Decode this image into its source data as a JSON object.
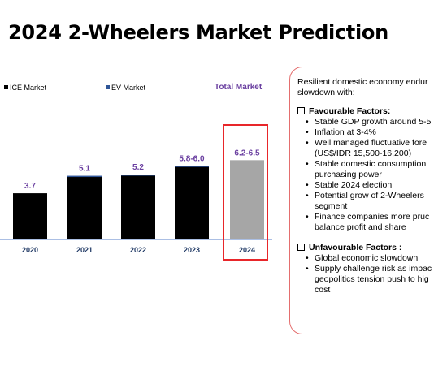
{
  "title": "2024 2-Wheelers Market Prediction",
  "chart_data": {
    "type": "bar",
    "categories": [
      "2020",
      "2021",
      "2022",
      "2023",
      "2024"
    ],
    "series": [
      {
        "name": "ICE Market",
        "values": [
          3.7,
          5.05,
          5.15,
          5.85,
          null
        ]
      },
      {
        "name": "EV Market",
        "values": [
          0,
          0.05,
          0.05,
          0.05,
          null
        ]
      },
      {
        "name": "Total Market",
        "values": [
          null,
          null,
          null,
          null,
          6.35
        ]
      }
    ],
    "data_labels": [
      "3.7",
      "5.1",
      "5.2",
      "5.8-6.0",
      "6.2-6.5"
    ],
    "highlight_category": "2024",
    "colors": {
      "ice": "#000000",
      "ev": "#2f5597",
      "total": "#a6a6a6",
      "label": "#6a3fa0",
      "highlight": "#e8262a"
    },
    "ylim": [
      0,
      8
    ],
    "legend": [
      "ICE Market",
      "EV Market",
      "Total Market"
    ],
    "grid": false
  },
  "panel": {
    "intro_line1": "Resilient domestic economy endur",
    "intro_line2": "slowdown with:",
    "favourable_title": "Favourable Factors:",
    "favourable": [
      [
        "Stable GDP growth around 5-5"
      ],
      [
        "Inflation at 3-4%"
      ],
      [
        "Well managed fluctuative fore",
        "(US$/IDR 15,500-16,200)"
      ],
      [
        "Stable domestic consumption",
        "purchasing power"
      ],
      [
        "Stable 2024 election"
      ],
      [
        "Potential grow of 2-Wheelers",
        "segment"
      ],
      [
        "Finance companies more pruc",
        "balance profit and share"
      ]
    ],
    "unfavourable_title": "Unfavourable Factors :",
    "unfavourable": [
      [
        "Global economic slowdown"
      ],
      [
        "Supply challenge risk as impac",
        "geopolitics tension push to hig",
        "cost"
      ]
    ]
  }
}
